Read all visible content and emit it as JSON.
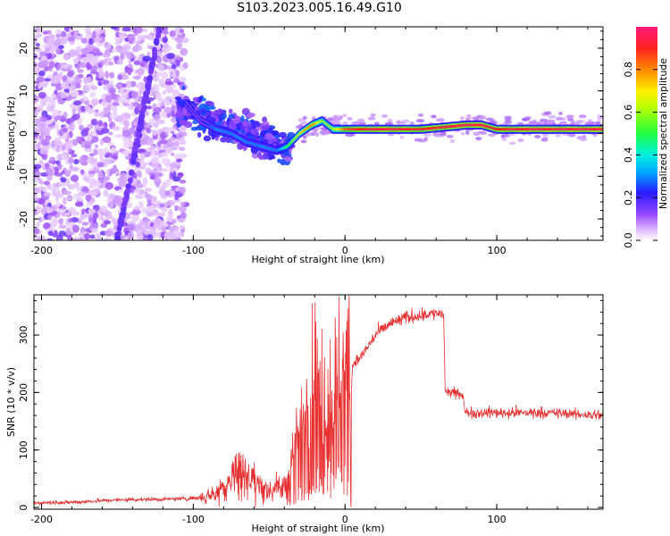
{
  "title": "S103.2023.005.16.49.G10",
  "colors": {
    "snr_line": "#e83030",
    "axis": "#000000",
    "spec_low": "#cc88ff",
    "spec_high": "#ff3355"
  },
  "chart_data": [
    {
      "type": "heatmap",
      "title": "S103.2023.005.16.49.G10",
      "xlabel": "Height of straight line (km)",
      "ylabel": "Frequency (Hz)",
      "xlim": [
        -205,
        170
      ],
      "ylim": [
        -25,
        25
      ],
      "x_ticks": [
        -200,
        -100,
        0,
        100
      ],
      "y_ticks": [
        -20,
        -10,
        0,
        10,
        20
      ],
      "colorbar": {
        "label": "Normalized spectral amplitude",
        "range": [
          0.0,
          1.0
        ],
        "ticks": [
          "0.0",
          "0.2",
          "0.4",
          "0.6",
          "0.8"
        ],
        "colormap": "rainbow"
      },
      "ridge": {
        "x": [
          -105,
          -95,
          -85,
          -75,
          -65,
          -55,
          -45,
          -38,
          -30,
          -22,
          -15,
          -8,
          0,
          20,
          50,
          80,
          90,
          100,
          120,
          150,
          170
        ],
        "freq": [
          7,
          3,
          1,
          0,
          -2,
          -3,
          -4,
          -3,
          0,
          2,
          3,
          1,
          1,
          1,
          1,
          2,
          2,
          1,
          1,
          1,
          1
        ],
        "amplitude": [
          0.2,
          0.2,
          0.3,
          0.3,
          0.3,
          0.3,
          0.3,
          0.5,
          0.7,
          0.8,
          0.6,
          0.6,
          0.85,
          0.95,
          0.9,
          0.95,
          0.95,
          0.9,
          0.95,
          0.95,
          0.95
        ]
      }
    },
    {
      "type": "line",
      "xlabel": "Height of straight line (km)",
      "ylabel": "SNR (10 * v/v)",
      "xlim": [
        -205,
        170
      ],
      "ylim": [
        -3,
        370
      ],
      "x_ticks": [
        -200,
        -100,
        0,
        100
      ],
      "y_ticks": [
        0,
        100,
        200,
        300
      ],
      "x": [
        -205,
        -180,
        -160,
        -140,
        -120,
        -100,
        -90,
        -80,
        -70,
        -60,
        -50,
        -40,
        -30,
        -20,
        -15,
        -10,
        0,
        10,
        20,
        30,
        40,
        50,
        60,
        65,
        66,
        70,
        78,
        79,
        100,
        130,
        170
      ],
      "values": [
        8,
        9,
        12,
        14,
        14,
        16,
        20,
        35,
        70,
        45,
        30,
        35,
        120,
        220,
        180,
        230,
        240,
        260,
        300,
        320,
        330,
        335,
        338,
        335,
        200,
        200,
        195,
        165,
        165,
        165,
        160
      ]
    }
  ]
}
